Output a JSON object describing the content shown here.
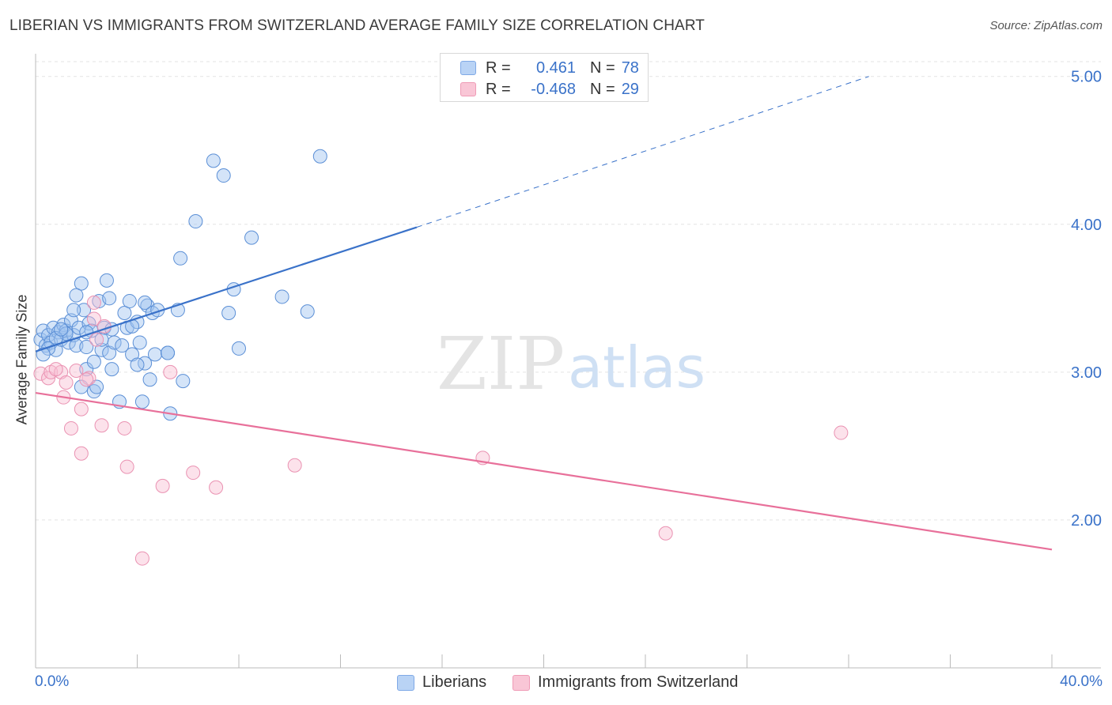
{
  "title": "LIBERIAN VS IMMIGRANTS FROM SWITZERLAND AVERAGE FAMILY SIZE CORRELATION CHART",
  "source": "Source: ZipAtlas.com",
  "legend": {
    "rows": [
      {
        "r_label": "R =",
        "r_value": "0.461",
        "n_label": "N =",
        "n_value": "78"
      },
      {
        "r_label": "R =",
        "r_value": "-0.468",
        "n_label": "N =",
        "n_value": "29"
      }
    ]
  },
  "bottom_legend": {
    "series1": "Liberians",
    "series2": "Immigrants from Switzerland"
  },
  "axis": {
    "ylabel": "Average Family Size",
    "x_min_label": "0.0%",
    "x_max_label": "40.0%"
  },
  "watermark": {
    "zip": "ZIP",
    "atlas": "atlas"
  },
  "colors": {
    "blue": "#3a72c9",
    "pink": "#e8709a",
    "blue_fill": "#b9d3f5",
    "pink_fill": "#f9c6d6"
  },
  "chart_data": {
    "type": "scatter",
    "xlabel": "",
    "ylabel": "Average Family Size",
    "xlim": [
      0,
      40
    ],
    "ylim": [
      1.0,
      5.1
    ],
    "y_ticks": [
      {
        "value": 2.0,
        "label": "2.00"
      },
      {
        "value": 3.0,
        "label": "3.00"
      },
      {
        "value": 4.0,
        "label": "4.00"
      },
      {
        "value": 5.0,
        "label": "5.00"
      }
    ],
    "grid": true,
    "legend_position": "top-center",
    "series": [
      {
        "name": "Liberians",
        "color": "#3a72c9",
        "points": [
          [
            0.2,
            3.22
          ],
          [
            0.3,
            3.28
          ],
          [
            0.4,
            3.18
          ],
          [
            0.5,
            3.25
          ],
          [
            0.6,
            3.2
          ],
          [
            0.7,
            3.3
          ],
          [
            0.8,
            3.15
          ],
          [
            0.9,
            3.27
          ],
          [
            1.0,
            3.22
          ],
          [
            1.1,
            3.32
          ],
          [
            1.2,
            3.28
          ],
          [
            1.3,
            3.2
          ],
          [
            1.4,
            3.35
          ],
          [
            1.5,
            3.25
          ],
          [
            1.6,
            3.18
          ],
          [
            1.7,
            3.3
          ],
          [
            1.8,
            3.6
          ],
          [
            1.9,
            3.42
          ],
          [
            2.0,
            3.17
          ],
          [
            2.1,
            3.33
          ],
          [
            2.2,
            3.28
          ],
          [
            2.3,
            2.87
          ],
          [
            2.4,
            2.9
          ],
          [
            2.5,
            3.48
          ],
          [
            2.6,
            3.15
          ],
          [
            2.7,
            3.3
          ],
          [
            2.8,
            3.62
          ],
          [
            2.9,
            3.13
          ],
          [
            3.0,
            3.02
          ],
          [
            3.1,
            3.2
          ],
          [
            3.3,
            2.8
          ],
          [
            3.4,
            3.18
          ],
          [
            3.5,
            3.4
          ],
          [
            3.6,
            3.3
          ],
          [
            3.7,
            3.48
          ],
          [
            3.8,
            3.12
          ],
          [
            4.0,
            3.34
          ],
          [
            4.1,
            3.2
          ],
          [
            4.2,
            2.8
          ],
          [
            4.3,
            3.06
          ],
          [
            4.4,
            3.45
          ],
          [
            4.5,
            2.95
          ],
          [
            4.6,
            3.4
          ],
          [
            4.7,
            3.12
          ],
          [
            4.8,
            3.42
          ],
          [
            5.2,
            3.13
          ],
          [
            5.3,
            2.72
          ],
          [
            5.6,
            3.42
          ],
          [
            5.7,
            3.77
          ],
          [
            5.8,
            2.94
          ],
          [
            6.3,
            4.02
          ],
          [
            7.0,
            4.43
          ],
          [
            7.4,
            4.33
          ],
          [
            7.6,
            3.4
          ],
          [
            7.8,
            3.56
          ],
          [
            8.0,
            3.16
          ],
          [
            8.5,
            3.91
          ],
          [
            9.7,
            3.51
          ],
          [
            10.7,
            3.41
          ],
          [
            11.2,
            4.46
          ],
          [
            1.6,
            3.52
          ],
          [
            2.0,
            3.02
          ],
          [
            2.9,
            3.5
          ],
          [
            3.8,
            3.31
          ],
          [
            4.3,
            3.47
          ],
          [
            1.2,
            3.26
          ],
          [
            0.8,
            3.23
          ],
          [
            0.5,
            3.16
          ],
          [
            1.8,
            2.9
          ],
          [
            2.3,
            3.07
          ],
          [
            3.0,
            3.29
          ],
          [
            0.3,
            3.12
          ],
          [
            1.5,
            3.42
          ],
          [
            2.6,
            3.22
          ],
          [
            4.0,
            3.05
          ],
          [
            5.2,
            3.13
          ],
          [
            2.0,
            3.27
          ],
          [
            1.0,
            3.29
          ]
        ],
        "trend": {
          "x0": 0.0,
          "y0": 3.14,
          "x1": 15.0,
          "y1": 3.98,
          "dash_to_x": 32.8,
          "dash_to_y": 5.0
        }
      },
      {
        "name": "Immigrants from Switzerland",
        "color": "#e8709a",
        "points": [
          [
            0.2,
            2.99
          ],
          [
            0.5,
            2.96
          ],
          [
            0.6,
            3.0
          ],
          [
            1.0,
            3.0
          ],
          [
            1.1,
            2.83
          ],
          [
            1.2,
            2.93
          ],
          [
            1.4,
            2.62
          ],
          [
            1.6,
            3.01
          ],
          [
            1.8,
            2.75
          ],
          [
            1.8,
            2.45
          ],
          [
            2.1,
            2.96
          ],
          [
            2.3,
            3.47
          ],
          [
            2.3,
            3.36
          ],
          [
            2.4,
            3.22
          ],
          [
            2.6,
            2.64
          ],
          [
            2.7,
            3.31
          ],
          [
            3.5,
            2.62
          ],
          [
            3.6,
            2.36
          ],
          [
            4.2,
            1.74
          ],
          [
            5.0,
            2.23
          ],
          [
            5.3,
            3.0
          ],
          [
            6.2,
            2.32
          ],
          [
            7.1,
            2.22
          ],
          [
            10.2,
            2.37
          ],
          [
            17.6,
            2.42
          ],
          [
            24.8,
            1.91
          ],
          [
            31.7,
            2.59
          ],
          [
            0.8,
            3.02
          ],
          [
            2.0,
            2.95
          ]
        ],
        "trend": {
          "x0": 0.0,
          "y0": 2.86,
          "x1": 40.0,
          "y1": 1.8
        }
      }
    ]
  }
}
